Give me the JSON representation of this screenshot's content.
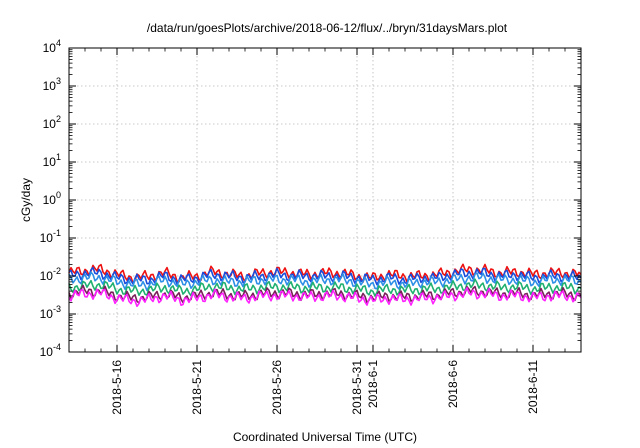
{
  "chart_data": {
    "type": "line",
    "title": "/data/run/goesPlots/archive/2018-06-12/flux/../bryn/31daysMars.plot",
    "xlabel": "Coordinated Universal Time (UTC)",
    "ylabel": "cGy/day",
    "yscale": "log",
    "ylim": [
      0.0001,
      10000
    ],
    "xlim": [
      "2018-05-13",
      "2018-06-14"
    ],
    "grid": true,
    "y_ticks": [
      {
        "base": "10",
        "exp": "-4",
        "value": 0.0001
      },
      {
        "base": "10",
        "exp": "-3",
        "value": 0.001
      },
      {
        "base": "10",
        "exp": "-2",
        "value": 0.01
      },
      {
        "base": "10",
        "exp": "-1",
        "value": 0.1
      },
      {
        "base": "10",
        "exp": "0",
        "value": 1
      },
      {
        "base": "10",
        "exp": "1",
        "value": 10
      },
      {
        "base": "10",
        "exp": "2",
        "value": 100
      },
      {
        "base": "10",
        "exp": "3",
        "value": 1000
      },
      {
        "base": "10",
        "exp": "4",
        "value": 10000
      }
    ],
    "x_ticks": [
      {
        "date": "2018-05-16",
        "label": "2018-5-16"
      },
      {
        "date": "2018-05-21",
        "label": "2018-5-21"
      },
      {
        "date": "2018-05-26",
        "label": "2018-5-26"
      },
      {
        "date": "2018-05-31",
        "label": "2018-5-31"
      },
      {
        "date": "2018-06-01",
        "label": "2018-6-1"
      },
      {
        "date": "2018-06-06",
        "label": "2018-6-6"
      },
      {
        "date": "2018-06-11",
        "label": "2018-6-11"
      }
    ],
    "x": [
      "2018-05-13",
      "2018-05-14",
      "2018-05-15",
      "2018-05-16",
      "2018-05-17",
      "2018-05-18",
      "2018-05-19",
      "2018-05-20",
      "2018-05-21",
      "2018-05-22",
      "2018-05-23",
      "2018-05-24",
      "2018-05-25",
      "2018-05-26",
      "2018-05-27",
      "2018-05-28",
      "2018-05-29",
      "2018-05-30",
      "2018-05-31",
      "2018-06-01",
      "2018-06-02",
      "2018-06-03",
      "2018-06-04",
      "2018-06-05",
      "2018-06-06",
      "2018-06-07",
      "2018-06-08",
      "2018-06-09",
      "2018-06-10",
      "2018-06-11",
      "2018-06-12",
      "2018-06-13",
      "2018-06-14"
    ],
    "series": [
      {
        "color": "#ee1111",
        "values": [
          0.012,
          0.014,
          0.015,
          0.011,
          0.009,
          0.01,
          0.012,
          0.009,
          0.01,
          0.013,
          0.011,
          0.01,
          0.012,
          0.013,
          0.012,
          0.011,
          0.012,
          0.012,
          0.01,
          0.009,
          0.011,
          0.01,
          0.01,
          0.011,
          0.013,
          0.015,
          0.014,
          0.012,
          0.013,
          0.011,
          0.012,
          0.012,
          0.011
        ]
      },
      {
        "color": "#1a4cdc",
        "values": [
          0.01,
          0.012,
          0.012,
          0.009,
          0.008,
          0.008,
          0.01,
          0.008,
          0.009,
          0.011,
          0.01,
          0.009,
          0.01,
          0.011,
          0.01,
          0.01,
          0.01,
          0.01,
          0.009,
          0.008,
          0.009,
          0.008,
          0.009,
          0.009,
          0.011,
          0.012,
          0.012,
          0.01,
          0.011,
          0.009,
          0.01,
          0.01,
          0.009
        ]
      },
      {
        "color": "#2d8fe6",
        "values": [
          0.008,
          0.009,
          0.009,
          0.007,
          0.006,
          0.006,
          0.008,
          0.006,
          0.007,
          0.008,
          0.007,
          0.007,
          0.008,
          0.008,
          0.008,
          0.007,
          0.008,
          0.008,
          0.007,
          0.006,
          0.007,
          0.006,
          0.007,
          0.007,
          0.008,
          0.009,
          0.009,
          0.008,
          0.008,
          0.007,
          0.008,
          0.008,
          0.007
        ]
      },
      {
        "color": "#20b070",
        "values": [
          0.005,
          0.0055,
          0.006,
          0.0045,
          0.004,
          0.0042,
          0.005,
          0.004,
          0.0045,
          0.0055,
          0.0048,
          0.0045,
          0.005,
          0.0052,
          0.005,
          0.0048,
          0.005,
          0.005,
          0.0045,
          0.004,
          0.0045,
          0.0042,
          0.0045,
          0.0046,
          0.0052,
          0.0058,
          0.0056,
          0.005,
          0.0052,
          0.0046,
          0.005,
          0.005,
          0.0046
        ]
      },
      {
        "color": "#7a1f5a",
        "values": [
          0.0035,
          0.004,
          0.004,
          0.003,
          0.0026,
          0.0028,
          0.0034,
          0.0027,
          0.003,
          0.0036,
          0.0032,
          0.003,
          0.0034,
          0.0036,
          0.0034,
          0.0032,
          0.0034,
          0.0034,
          0.003,
          0.0027,
          0.003,
          0.0028,
          0.003,
          0.0031,
          0.0036,
          0.004,
          0.0038,
          0.0034,
          0.0035,
          0.0031,
          0.0034,
          0.0034,
          0.0031
        ]
      },
      {
        "color": "#ff22ff",
        "values": [
          0.003,
          0.0034,
          0.0035,
          0.0026,
          0.0022,
          0.0024,
          0.003,
          0.0023,
          0.0026,
          0.0032,
          0.0028,
          0.0026,
          0.003,
          0.0031,
          0.003,
          0.0028,
          0.003,
          0.003,
          0.0026,
          0.0023,
          0.0026,
          0.0024,
          0.0026,
          0.0027,
          0.0031,
          0.0035,
          0.0034,
          0.003,
          0.0031,
          0.0027,
          0.003,
          0.003,
          0.0027
        ]
      }
    ]
  }
}
